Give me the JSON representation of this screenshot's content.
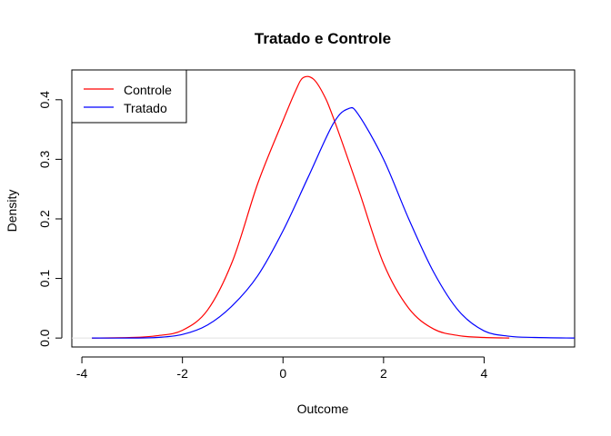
{
  "chart_data": {
    "type": "line",
    "title": "Tratado e Controle",
    "xlabel": "Outcome",
    "ylabel": "Density",
    "xlim": [
      -4.2,
      5.8
    ],
    "ylim": [
      -0.015,
      0.45
    ],
    "x_ticks": [
      -4,
      -2,
      0,
      2,
      4
    ],
    "x_tick_labels": [
      "-4",
      "-2",
      "0",
      "2",
      "4"
    ],
    "y_ticks": [
      0.0,
      0.1,
      0.2,
      0.3,
      0.4
    ],
    "y_tick_labels": [
      "0.0",
      "0.1",
      "0.2",
      "0.3",
      "0.4"
    ],
    "grid": false,
    "legend_position": "top-left",
    "series": [
      {
        "name": "Controle",
        "color": "#ff0000",
        "x": [
          -3.8,
          -3.0,
          -2.5,
          -2.0,
          -1.5,
          -1.0,
          -0.5,
          0.0,
          0.25,
          0.4,
          0.6,
          0.8,
          1.0,
          1.5,
          2.0,
          2.5,
          3.0,
          3.5,
          4.0,
          4.5
        ],
        "y": [
          0.0,
          0.001,
          0.004,
          0.013,
          0.047,
          0.13,
          0.26,
          0.365,
          0.415,
          0.437,
          0.435,
          0.41,
          0.37,
          0.25,
          0.125,
          0.05,
          0.015,
          0.004,
          0.001,
          0.0
        ]
      },
      {
        "name": "Tratado",
        "color": "#0000ff",
        "x": [
          -3.8,
          -3.0,
          -2.5,
          -2.0,
          -1.5,
          -1.0,
          -0.5,
          0.0,
          0.5,
          1.0,
          1.3,
          1.5,
          2.0,
          2.5,
          3.0,
          3.5,
          4.0,
          4.5,
          5.0,
          5.8
        ],
        "y": [
          0.0,
          0.0,
          0.001,
          0.006,
          0.022,
          0.055,
          0.105,
          0.18,
          0.27,
          0.36,
          0.385,
          0.375,
          0.3,
          0.2,
          0.11,
          0.045,
          0.012,
          0.003,
          0.001,
          0.0
        ]
      }
    ]
  }
}
